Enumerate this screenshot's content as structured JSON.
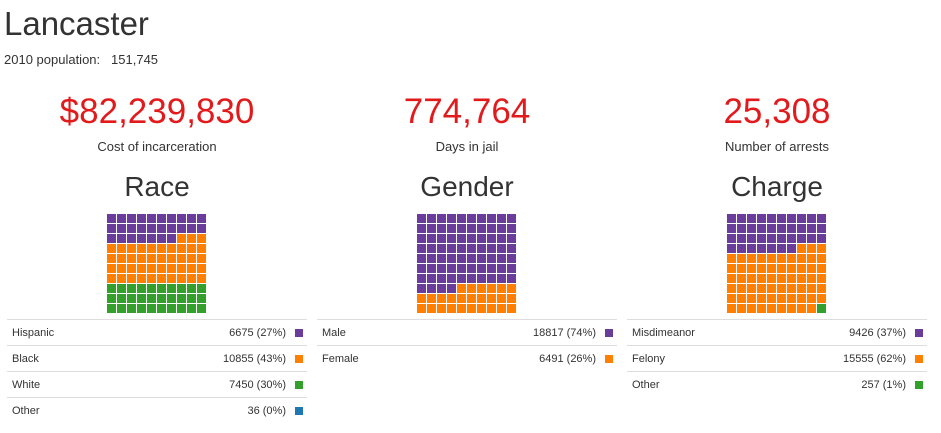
{
  "city": {
    "name": "Lancaster",
    "population_label": "2010 population:",
    "population_value": "151,745"
  },
  "colors": {
    "purple": "#6a3d9a",
    "orange": "#ff7f00",
    "green": "#33a02c",
    "blue": "#1f78b4",
    "red": "#e31a1c"
  },
  "columns": [
    {
      "stat_value": "$82,239,830",
      "stat_label": "Cost of incarceration",
      "section_title": "Race",
      "legend": [
        {
          "name": "Hispanic",
          "value": "6675 (27%)",
          "color": "#6a3d9a"
        },
        {
          "name": "Black",
          "value": "10855 (43%)",
          "color": "#ff7f00"
        },
        {
          "name": "White",
          "value": "7450 (30%)",
          "color": "#33a02c"
        },
        {
          "name": "Other",
          "value": "36 (0%)",
          "color": "#1f78b4"
        }
      ],
      "waffle_counts": [
        27,
        43,
        30,
        0
      ]
    },
    {
      "stat_value": "774,764",
      "stat_label": "Days in jail",
      "section_title": "Gender",
      "legend": [
        {
          "name": "Male",
          "value": "18817 (74%)",
          "color": "#6a3d9a"
        },
        {
          "name": "Female",
          "value": "6491 (26%)",
          "color": "#ff7f00"
        }
      ],
      "waffle_counts": [
        74,
        26
      ]
    },
    {
      "stat_value": "25,308",
      "stat_label": "Number of arrests",
      "section_title": "Charge",
      "legend": [
        {
          "name": "Misdimeanor",
          "value": "9426 (37%)",
          "color": "#6a3d9a"
        },
        {
          "name": "Felony",
          "value": "15555 (62%)",
          "color": "#ff7f00"
        },
        {
          "name": "Other",
          "value": "257 (1%)",
          "color": "#33a02c"
        }
      ],
      "waffle_counts": [
        37,
        62,
        1
      ]
    }
  ]
}
